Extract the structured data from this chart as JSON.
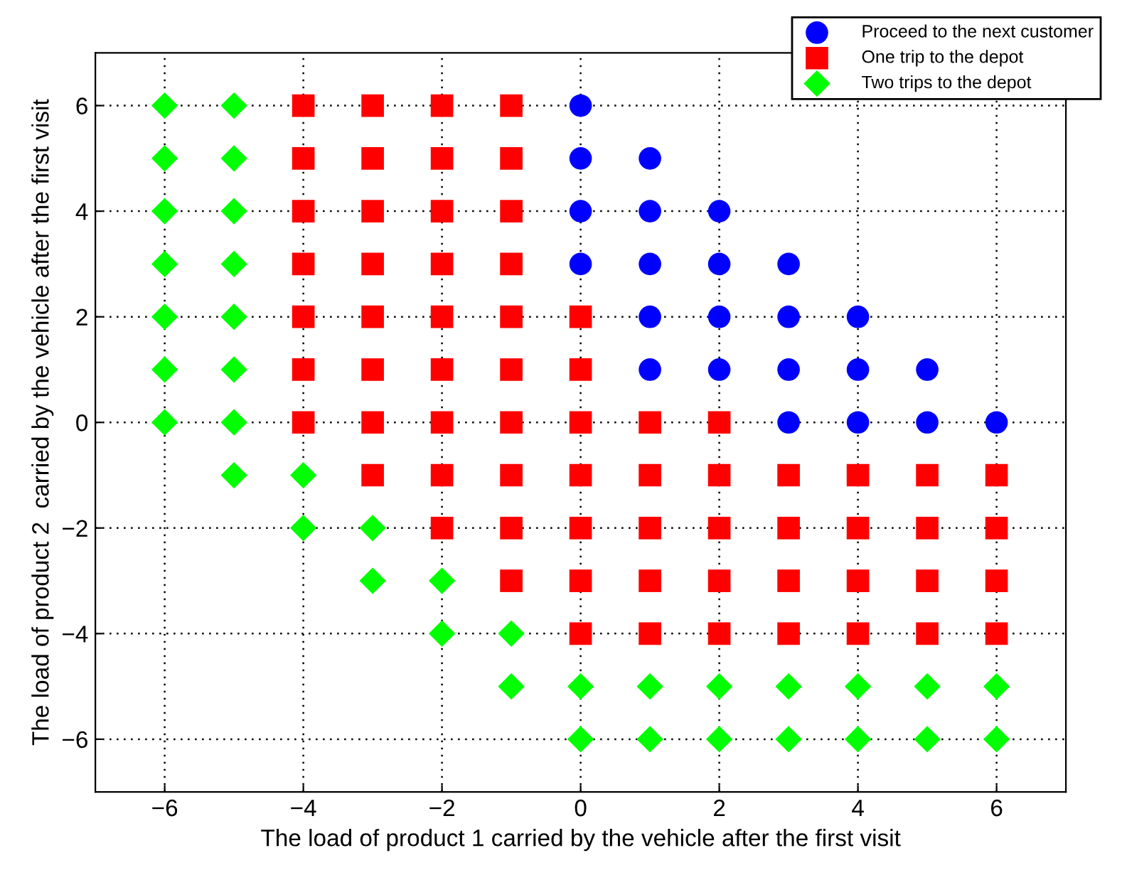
{
  "chart_data": {
    "type": "scatter",
    "xlabel": "The load of product 1 carried by the vehicle after the first visit",
    "ylabel": "The load of product 2  carried by the vehicle after the first visit",
    "xlim": [
      -7,
      7
    ],
    "ylim": [
      -7,
      7
    ],
    "xticks": [
      {
        "value": -6,
        "label": "−6"
      },
      {
        "value": -4,
        "label": "−4"
      },
      {
        "value": -2,
        "label": "−2"
      },
      0,
      2,
      4,
      6
    ],
    "yticks": [
      {
        "value": -6,
        "label": "−6"
      },
      {
        "value": -4,
        "label": "−4"
      },
      {
        "value": -2,
        "label": "−2"
      },
      0,
      2,
      4,
      6
    ],
    "grid": true,
    "legend": "top right",
    "series": [
      {
        "name": "Proceed to the next customer",
        "color": "#0000ff",
        "marker": "circle",
        "x": [
          0,
          0,
          1,
          0,
          1,
          2,
          0,
          1,
          2,
          3,
          1,
          2,
          3,
          4,
          1,
          2,
          3,
          4,
          5,
          3,
          4,
          5,
          6
        ],
        "values": [
          6,
          5,
          5,
          4,
          4,
          4,
          3,
          3,
          3,
          3,
          2,
          2,
          2,
          2,
          1,
          1,
          1,
          1,
          1,
          0,
          0,
          0,
          0
        ]
      },
      {
        "name": "One trip to the depot",
        "color": "#ff0000",
        "marker": "square",
        "x": [
          -4,
          -3,
          -2,
          -1,
          -4,
          -3,
          -2,
          -1,
          -4,
          -3,
          -2,
          -1,
          -4,
          -3,
          -2,
          -1,
          -4,
          -3,
          -2,
          -1,
          0,
          -4,
          -3,
          -2,
          -1,
          0,
          -4,
          -3,
          -2,
          -1,
          0,
          1,
          2,
          -3,
          -2,
          -1,
          0,
          1,
          2,
          3,
          4,
          5,
          6,
          -2,
          -1,
          0,
          1,
          2,
          3,
          4,
          5,
          6,
          -1,
          0,
          1,
          2,
          3,
          4,
          5,
          6,
          0,
          1,
          2,
          3,
          4,
          5,
          6
        ],
        "values": [
          6,
          6,
          6,
          6,
          5,
          5,
          5,
          5,
          4,
          4,
          4,
          4,
          3,
          3,
          3,
          3,
          2,
          2,
          2,
          2,
          2,
          1,
          1,
          1,
          1,
          1,
          0,
          0,
          0,
          0,
          0,
          0,
          0,
          -1,
          -1,
          -1,
          -1,
          -1,
          -1,
          -1,
          -1,
          -1,
          -1,
          -2,
          -2,
          -2,
          -2,
          -2,
          -2,
          -2,
          -2,
          -2,
          -3,
          -3,
          -3,
          -3,
          -3,
          -3,
          -3,
          -3,
          -4,
          -4,
          -4,
          -4,
          -4,
          -4,
          -4
        ]
      },
      {
        "name": "Two trips to the depot",
        "color": "#00ff00",
        "marker": "diamond",
        "x": [
          -6,
          -5,
          -6,
          -5,
          -6,
          -5,
          -6,
          -5,
          -6,
          -5,
          -6,
          -5,
          -6,
          -5,
          -5,
          -4,
          -4,
          -3,
          -3,
          -2,
          -2,
          -1,
          -1,
          0,
          1,
          2,
          3,
          4,
          5,
          6,
          0,
          1,
          2,
          3,
          4,
          5,
          6
        ],
        "values": [
          6,
          6,
          5,
          5,
          4,
          4,
          3,
          3,
          2,
          2,
          1,
          1,
          0,
          0,
          -1,
          -1,
          -2,
          -2,
          -3,
          -3,
          -4,
          -4,
          -5,
          -5,
          -5,
          -5,
          -5,
          -5,
          -5,
          -5,
          -6,
          -6,
          -6,
          -6,
          -6,
          -6,
          -6
        ]
      }
    ]
  }
}
